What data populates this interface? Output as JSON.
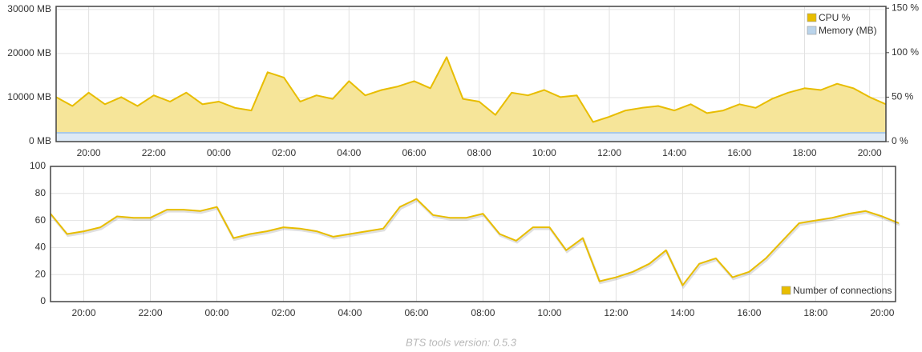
{
  "chart_data": [
    {
      "type": "area",
      "x": [
        19,
        19.5,
        20,
        20.5,
        21,
        21.5,
        22,
        22.5,
        23,
        23.5,
        24,
        24.5,
        25,
        25.5,
        26,
        26.5,
        27,
        27.5,
        28,
        28.5,
        29,
        29.5,
        30,
        30.5,
        31,
        31.5,
        32,
        32.5,
        33,
        33.5,
        34,
        34.5,
        35,
        35.5,
        36,
        36.5,
        37,
        37.5,
        38,
        38.5,
        39,
        39.5,
        40,
        40.5,
        41,
        41.5,
        42,
        42.5,
        43,
        43.5,
        44,
        44.5
      ],
      "xlim": [
        19,
        44.5
      ],
      "xticks": [
        {
          "value": 20,
          "label": "20:00"
        },
        {
          "value": 22,
          "label": "22:00"
        },
        {
          "value": 24,
          "label": "00:00"
        },
        {
          "value": 26,
          "label": "02:00"
        },
        {
          "value": 28,
          "label": "04:00"
        },
        {
          "value": 30,
          "label": "06:00"
        },
        {
          "value": 32,
          "label": "08:00"
        },
        {
          "value": 34,
          "label": "10:00"
        },
        {
          "value": 36,
          "label": "12:00"
        },
        {
          "value": 38,
          "label": "14:00"
        },
        {
          "value": 40,
          "label": "16:00"
        },
        {
          "value": 42,
          "label": "18:00"
        },
        {
          "value": 44,
          "label": "20:00"
        }
      ],
      "ylim": [
        0,
        30700
      ],
      "yticks": [
        {
          "value": 0,
          "label": "0 MB"
        },
        {
          "value": 10000,
          "label": "10000 MB"
        },
        {
          "value": 20000,
          "label": "20000 MB"
        },
        {
          "value": 30000,
          "label": "30000 MB"
        }
      ],
      "y2lim": [
        0,
        152
      ],
      "y2ticks": [
        {
          "value": 0,
          "label": "0 %"
        },
        {
          "value": 50,
          "label": "50 %"
        },
        {
          "value": 100,
          "label": "100 %"
        },
        {
          "value": 150,
          "label": "150 %"
        }
      ],
      "grid": true,
      "legend": "upper right",
      "series": [
        {
          "name": "CPU %",
          "color": "#e8bd00",
          "axis": "y2",
          "values": [
            50,
            40,
            55,
            42,
            50,
            40,
            52,
            45,
            55,
            42,
            45,
            38,
            35,
            78,
            72,
            45,
            52,
            48,
            68,
            52,
            58,
            62,
            68,
            60,
            95,
            48,
            45,
            30,
            55,
            52,
            58,
            50,
            52,
            22,
            28,
            35,
            38,
            40,
            35,
            42,
            32,
            35,
            42,
            38,
            48,
            55,
            60,
            58,
            65,
            60,
            50,
            42
          ]
        },
        {
          "name": "Memory (MB)",
          "color": "#a9c9e6",
          "values": [
            2000,
            2000,
            2000,
            2000,
            2000,
            2000,
            2000,
            2000,
            2000,
            2000,
            2000,
            2000,
            2000,
            2000,
            2000,
            2000,
            2000,
            2000,
            2000,
            2000,
            2000,
            2000,
            2000,
            2000,
            2000,
            2000,
            2000,
            2000,
            2000,
            2000,
            2000,
            2000,
            2000,
            2000,
            2000,
            2000,
            2000,
            2000,
            2000,
            2000,
            2000,
            2000,
            2000,
            2000,
            2000,
            2000,
            2000,
            2000,
            2000,
            2000,
            2000,
            2000
          ]
        }
      ]
    },
    {
      "type": "line",
      "x": [
        19,
        19.5,
        20,
        20.5,
        21,
        21.5,
        22,
        22.5,
        23,
        23.5,
        24,
        24.5,
        25,
        25.5,
        26,
        26.5,
        27,
        27.5,
        28,
        28.5,
        29,
        29.5,
        30,
        30.5,
        31,
        31.5,
        32,
        32.5,
        33,
        33.5,
        34,
        34.5,
        35,
        35.5,
        36,
        36.5,
        37,
        37.5,
        38,
        38.5,
        39,
        39.5,
        40,
        40.5,
        41,
        41.5,
        42,
        42.5,
        43,
        43.5,
        44,
        44.5
      ],
      "xlim": [
        19,
        44.4
      ],
      "xticks": [
        {
          "value": 20,
          "label": "20:00"
        },
        {
          "value": 22,
          "label": "22:00"
        },
        {
          "value": 24,
          "label": "00:00"
        },
        {
          "value": 26,
          "label": "02:00"
        },
        {
          "value": 28,
          "label": "04:00"
        },
        {
          "value": 30,
          "label": "06:00"
        },
        {
          "value": 32,
          "label": "08:00"
        },
        {
          "value": 34,
          "label": "10:00"
        },
        {
          "value": 36,
          "label": "12:00"
        },
        {
          "value": 38,
          "label": "14:00"
        },
        {
          "value": 40,
          "label": "16:00"
        },
        {
          "value": 42,
          "label": "18:00"
        },
        {
          "value": 44,
          "label": "20:00"
        }
      ],
      "ylim": [
        0,
        100
      ],
      "yticks": [
        0,
        20,
        40,
        60,
        80,
        100
      ],
      "grid": true,
      "legend": "lower right",
      "series": [
        {
          "name": "Number of connections",
          "color": "#e8bd00",
          "values": [
            65,
            50,
            52,
            55,
            63,
            62,
            62,
            68,
            68,
            67,
            70,
            47,
            50,
            52,
            55,
            54,
            52,
            48,
            50,
            52,
            54,
            70,
            76,
            64,
            62,
            62,
            65,
            50,
            45,
            55,
            55,
            38,
            47,
            15,
            18,
            22,
            28,
            38,
            12,
            28,
            32,
            18,
            22,
            32,
            45,
            58,
            60,
            62,
            65,
            67,
            63,
            58
          ]
        }
      ]
    }
  ],
  "footer": "BTS tools version: 0.5.3"
}
